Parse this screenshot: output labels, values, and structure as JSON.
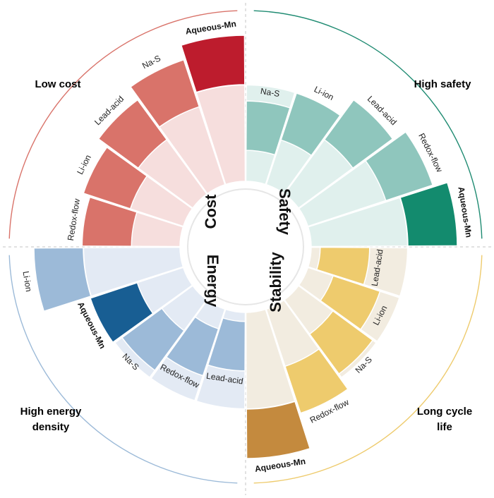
{
  "colors": {
    "cost": "#d9736a",
    "cost_light": "#f6dedd",
    "cost_accent": "#bd1c2d",
    "cost_text": "#b5293a",
    "safety": "#8fc6bd",
    "safety_light": "#e0f0ed",
    "safety_accent": "#138b6e",
    "safety_text": "#1f8b72",
    "energy": "#9cbad8",
    "energy_light": "#e3eaf4",
    "energy_accent": "#185e93",
    "energy_text": "#1f64a0",
    "stability": "#eecb6d",
    "stability_light": "#f2ece0",
    "stability_accent": "#c48a3e",
    "stability_text": "#c99537"
  },
  "quadrants": [
    {
      "key": "cost",
      "hub_label": "Cost",
      "category_label": "Low cost",
      "technologies": [
        {
          "name": "Redox-flow",
          "level": 0.67,
          "highlight": false
        },
        {
          "name": "Li-ion",
          "level": 0.72,
          "highlight": false
        },
        {
          "name": "Lead-acid",
          "level": 0.8,
          "highlight": false
        },
        {
          "name": "Na-S",
          "level": 0.9,
          "highlight": false
        },
        {
          "name": "Aqueous-Mn",
          "level": 1.0,
          "highlight": true
        }
      ]
    },
    {
      "key": "safety",
      "hub_label": "Safety",
      "category_label": "High safety",
      "technologies": [
        {
          "name": "Na-S",
          "level": 0.55,
          "highlight": false
        },
        {
          "name": "Li-ion",
          "level": 0.66,
          "highlight": false
        },
        {
          "name": "Lead-acid",
          "level": 0.8,
          "highlight": false
        },
        {
          "name": "Redox-flow",
          "level": 0.9,
          "highlight": false
        },
        {
          "name": "Aqueous-Mn",
          "level": 1.0,
          "highlight": true
        }
      ]
    },
    {
      "key": "energy",
      "hub_label": "Energy",
      "category_label_lines": [
        "High energy",
        "density"
      ],
      "technologies": [
        {
          "name": "Li-ion",
          "level": 1.0,
          "highlight": false
        },
        {
          "name": "Aqueous-Mn",
          "level": 0.67,
          "highlight": true
        },
        {
          "name": "Na-S",
          "level": 0.6,
          "highlight": false
        },
        {
          "name": "Redox-flow",
          "level": 0.48,
          "highlight": false
        },
        {
          "name": "Lead-acid",
          "level": 0.4,
          "highlight": false
        }
      ]
    },
    {
      "key": "stability",
      "hub_label": "Stability",
      "category_label_lines": [
        "Long cycle",
        "life"
      ],
      "technologies": [
        {
          "name": "Lead-acid",
          "level": 0.4,
          "highlight": false
        },
        {
          "name": "Li-ion",
          "level": 0.52,
          "highlight": false
        },
        {
          "name": "Na-S",
          "level": 0.63,
          "highlight": false
        },
        {
          "name": "Redox-flow",
          "level": 0.75,
          "highlight": false
        },
        {
          "name": "Aqueous-Mn",
          "level": 1.0,
          "highlight": true
        }
      ]
    }
  ]
}
